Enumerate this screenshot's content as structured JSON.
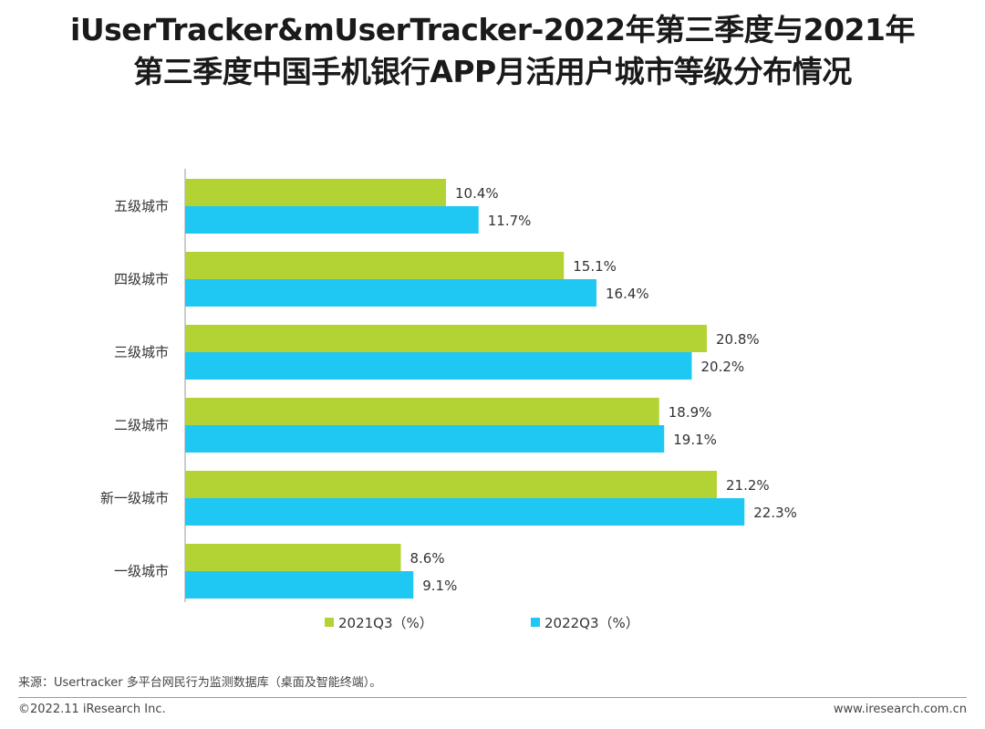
{
  "title": {
    "line1": "iUserTracker&mUserTracker-2022年第三季度与2021年",
    "line2": "第三季度中国手机银行APP月活用户城市等级分布情况"
  },
  "chart_data": {
    "type": "bar",
    "orientation": "horizontal",
    "categories": [
      "五级城市",
      "四级城市",
      "三级城市",
      "二级城市",
      "新一级城市",
      "一级城市"
    ],
    "series": [
      {
        "name": "2021Q3（%）",
        "color": "#b3d334",
        "values": [
          10.4,
          15.1,
          20.8,
          18.9,
          21.2,
          8.6
        ]
      },
      {
        "name": "2022Q3（%）",
        "color": "#1ec8f2",
        "values": [
          11.7,
          16.4,
          20.2,
          19.1,
          22.3,
          9.1
        ]
      }
    ],
    "value_suffix": "%",
    "xlim": [
      0,
      25
    ],
    "grid": false,
    "legend_position": "bottom"
  },
  "source": "来源：Usertracker 多平台网民行为监测数据库（桌面及智能终端）。",
  "footer": {
    "copyright": "©2022.11 iResearch Inc.",
    "website": "www.iresearch.com.cn"
  }
}
